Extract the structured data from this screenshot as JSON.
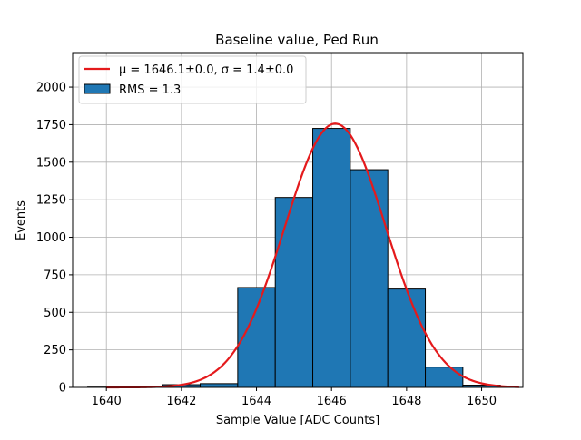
{
  "chart_data": {
    "type": "bar",
    "title": "Baseline value, Ped Run",
    "xlabel": "Sample Value [ADC Counts]",
    "ylabel": "Events",
    "xlim": [
      1639.1,
      1651.1
    ],
    "ylim": [
      0,
      2230
    ],
    "grid": true,
    "legend_placement": "top-left",
    "x_ticks": [
      {
        "value": 1640,
        "label": "1640"
      },
      {
        "value": 1642,
        "label": "1642"
      },
      {
        "value": 1644,
        "label": "1644"
      },
      {
        "value": 1646,
        "label": "1646"
      },
      {
        "value": 1648,
        "label": "1648"
      },
      {
        "value": 1650,
        "label": "1650"
      }
    ],
    "y_ticks": [
      {
        "value": 0,
        "label": "0"
      },
      {
        "value": 250,
        "label": "250"
      },
      {
        "value": 500,
        "label": "500"
      },
      {
        "value": 750,
        "label": "750"
      },
      {
        "value": 1000,
        "label": "1000"
      },
      {
        "value": 1250,
        "label": "1250"
      },
      {
        "value": 1500,
        "label": "1500"
      },
      {
        "value": 1750,
        "label": "1750"
      },
      {
        "value": 2000,
        "label": "2000"
      }
    ],
    "histogram": {
      "name": "RMS = 1.3",
      "color": "#1f77b4",
      "edge_color": "#000000",
      "bins": [
        {
          "x0": 1639.5,
          "x1": 1640.5,
          "count": 2
        },
        {
          "x0": 1640.5,
          "x1": 1641.5,
          "count": 2
        },
        {
          "x0": 1641.5,
          "x1": 1642.5,
          "count": 18
        },
        {
          "x0": 1642.5,
          "x1": 1643.5,
          "count": 25
        },
        {
          "x0": 1643.5,
          "x1": 1644.5,
          "count": 665
        },
        {
          "x0": 1644.5,
          "x1": 1645.5,
          "count": 1265
        },
        {
          "x0": 1645.5,
          "x1": 1646.5,
          "count": 1725
        },
        {
          "x0": 1646.5,
          "x1": 1647.5,
          "count": 1450
        },
        {
          "x0": 1647.5,
          "x1": 1648.5,
          "count": 655
        },
        {
          "x0": 1648.5,
          "x1": 1649.5,
          "count": 135
        },
        {
          "x0": 1649.5,
          "x1": 1650.5,
          "count": 15
        }
      ]
    },
    "fit": {
      "name_prefix": "μ = 1646.1±0.0, σ = 1.4±0.0",
      "color": "#e41a1c",
      "mu": 1646.1,
      "sigma": 1.35,
      "amplitude": 1757,
      "x_range": [
        1640,
        1651
      ]
    }
  }
}
